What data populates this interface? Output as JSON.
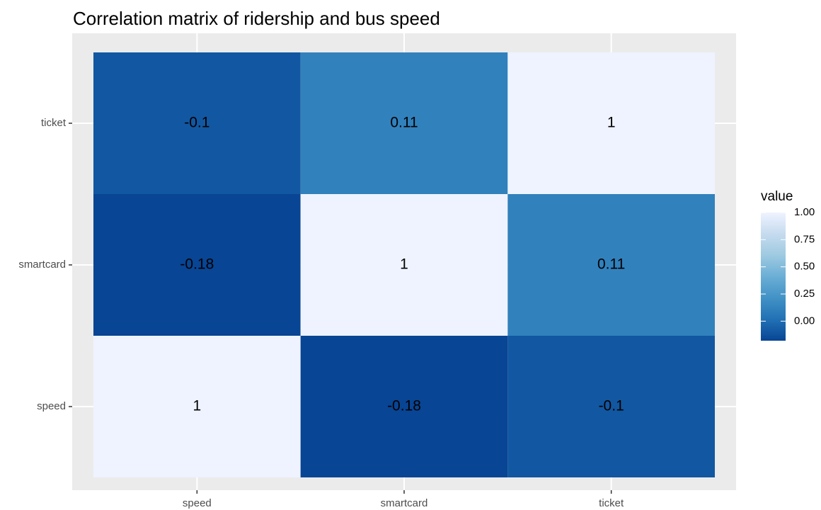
{
  "chart_data": {
    "type": "heatmap",
    "title": "Correlation matrix of ridership and bus speed",
    "x": [
      "speed",
      "smartcard",
      "ticket"
    ],
    "y": [
      "speed",
      "smartcard",
      "ticket"
    ],
    "values": [
      [
        1,
        -0.18,
        -0.1
      ],
      [
        -0.18,
        1,
        0.11
      ],
      [
        -0.1,
        0.11,
        1
      ]
    ],
    "legend_title": "value",
    "color_range": [
      -0.18,
      1
    ],
    "colors": [
      "#084594",
      "#2171b5",
      "#4292c6",
      "#6baed6",
      "#9ecae1",
      "#c6dbef",
      "#eff3ff"
    ],
    "colorbar_ticks": [
      {
        "value": 0,
        "label": "0.00"
      },
      {
        "value": 0.25,
        "label": "0.25"
      },
      {
        "value": 0.5,
        "label": "0.50"
      },
      {
        "value": 0.75,
        "label": "0.75"
      },
      {
        "value": 1,
        "label": "1.00"
      }
    ],
    "grid": true
  }
}
